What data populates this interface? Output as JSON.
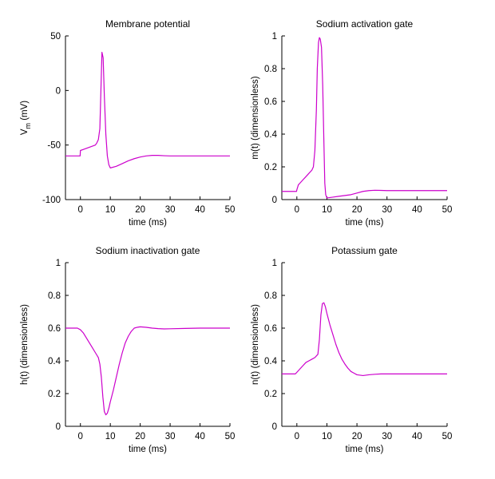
{
  "colors": {
    "line": "#cc00cc",
    "axis": "#000000",
    "background": "#ffffff"
  },
  "chart_data": [
    {
      "type": "line",
      "title": "Membrane potential",
      "xlabel": "time (ms)",
      "ylabel": "V",
      "ylabel_sub": "m",
      "ylabel_suffix": " (mV)",
      "xlim": [
        -5,
        50
      ],
      "ylim": [
        -100,
        50
      ],
      "xticks": [
        0,
        10,
        20,
        30,
        40,
        50
      ],
      "yticks": [
        -100,
        -50,
        0,
        50
      ],
      "xtick_labels": [
        "0",
        "10",
        "20",
        "30",
        "40",
        "50"
      ],
      "ytick_labels": [
        "-100",
        "-50",
        "0",
        "50"
      ],
      "grid": false,
      "series": [
        {
          "x": [
            -5,
            -0.1,
            0,
            1,
            2,
            3,
            4,
            5,
            5.5,
            6,
            6.5,
            6.8,
            7.2,
            7.6,
            8,
            8.5,
            9,
            9.5,
            10,
            12,
            14,
            16,
            18,
            20,
            22,
            24,
            26,
            28,
            30,
            35,
            40,
            45,
            50
          ],
          "y": [
            -60,
            -60,
            -55,
            -54,
            -53,
            -52,
            -51,
            -50,
            -48,
            -45,
            -35,
            -5,
            35,
            30,
            -5,
            -40,
            -60,
            -68,
            -71,
            -69.5,
            -67,
            -64.5,
            -62.5,
            -61,
            -60,
            -59.5,
            -59.5,
            -59.8,
            -60,
            -60,
            -60,
            -60,
            -60
          ]
        }
      ]
    },
    {
      "type": "line",
      "title": "Sodium activation gate",
      "xlabel": "time (ms)",
      "ylabel": "m(t) (dimensionless)",
      "xlim": [
        -5,
        50
      ],
      "ylim": [
        0,
        1
      ],
      "xticks": [
        0,
        10,
        20,
        30,
        40,
        50
      ],
      "yticks": [
        0,
        0.2,
        0.4,
        0.6,
        0.8,
        1
      ],
      "xtick_labels": [
        "0",
        "10",
        "20",
        "30",
        "40",
        "50"
      ],
      "ytick_labels": [
        "0",
        "0.2",
        "0.4",
        "0.6",
        "0.8",
        "1"
      ],
      "grid": false,
      "series": [
        {
          "x": [
            -5,
            -0.1,
            0,
            0.5,
            1,
            2,
            3,
            4,
            5,
            5.5,
            6,
            6.5,
            6.8,
            7.2,
            7.5,
            7.8,
            8.2,
            8.6,
            9,
            9.3,
            9.6,
            10,
            12,
            14,
            16,
            18,
            20,
            22,
            24,
            26,
            28,
            30,
            35,
            40,
            45,
            50
          ],
          "y": [
            0.05,
            0.05,
            0.06,
            0.09,
            0.1,
            0.12,
            0.14,
            0.16,
            0.18,
            0.2,
            0.3,
            0.55,
            0.8,
            0.96,
            0.99,
            0.98,
            0.93,
            0.7,
            0.35,
            0.1,
            0.03,
            0.01,
            0.015,
            0.02,
            0.025,
            0.03,
            0.04,
            0.05,
            0.055,
            0.057,
            0.056,
            0.055,
            0.055,
            0.055,
            0.055,
            0.055
          ]
        }
      ]
    },
    {
      "type": "line",
      "title": "Sodium inactivation gate",
      "xlabel": "time (ms)",
      "ylabel": "h(t) (dimensionless)",
      "xlim": [
        -5,
        50
      ],
      "ylim": [
        0,
        1
      ],
      "xticks": [
        0,
        10,
        20,
        30,
        40,
        50
      ],
      "yticks": [
        0,
        0.2,
        0.4,
        0.6,
        0.8,
        1
      ],
      "xtick_labels": [
        "0",
        "10",
        "20",
        "30",
        "40",
        "50"
      ],
      "ytick_labels": [
        "0",
        "0.2",
        "0.4",
        "0.6",
        "0.8",
        "1"
      ],
      "grid": false,
      "series": [
        {
          "x": [
            -5,
            -1,
            0,
            1,
            2,
            3,
            4,
            5,
            6,
            6.5,
            7,
            7.5,
            8,
            8.5,
            9,
            9.5,
            10,
            11,
            12,
            13,
            14,
            15,
            16,
            17,
            18,
            19,
            20,
            22,
            24,
            26,
            28,
            30,
            35,
            40,
            45,
            50
          ],
          "y": [
            0.6,
            0.6,
            0.59,
            0.57,
            0.54,
            0.51,
            0.48,
            0.45,
            0.42,
            0.38,
            0.3,
            0.18,
            0.09,
            0.07,
            0.08,
            0.11,
            0.15,
            0.22,
            0.3,
            0.38,
            0.45,
            0.51,
            0.55,
            0.58,
            0.6,
            0.605,
            0.608,
            0.605,
            0.6,
            0.597,
            0.595,
            0.596,
            0.598,
            0.6,
            0.6,
            0.6
          ]
        }
      ]
    },
    {
      "type": "line",
      "title": "Potassium gate",
      "xlabel": "time (ms)",
      "ylabel": "n(t) (dimensionless)",
      "xlim": [
        -5,
        50
      ],
      "ylim": [
        0,
        1
      ],
      "xticks": [
        0,
        10,
        20,
        30,
        40,
        50
      ],
      "yticks": [
        0,
        0.2,
        0.4,
        0.6,
        0.8,
        1
      ],
      "xtick_labels": [
        "0",
        "10",
        "20",
        "30",
        "40",
        "50"
      ],
      "ytick_labels": [
        "0",
        "0.2",
        "0.4",
        "0.6",
        "0.8",
        "1"
      ],
      "grid": false,
      "series": [
        {
          "x": [
            -5,
            -0.5,
            0,
            1,
            2,
            3,
            4,
            5,
            6,
            7,
            7.5,
            8,
            8.5,
            9,
            9.5,
            10,
            11,
            12,
            13,
            14,
            15,
            16,
            17,
            18,
            19,
            20,
            22,
            24,
            26,
            28,
            30,
            35,
            40,
            45,
            50
          ],
          "y": [
            0.32,
            0.32,
            0.33,
            0.35,
            0.37,
            0.39,
            0.4,
            0.41,
            0.42,
            0.44,
            0.53,
            0.68,
            0.75,
            0.755,
            0.73,
            0.69,
            0.62,
            0.56,
            0.5,
            0.45,
            0.41,
            0.38,
            0.355,
            0.335,
            0.325,
            0.315,
            0.31,
            0.315,
            0.318,
            0.32,
            0.32,
            0.32,
            0.32,
            0.32,
            0.32
          ]
        }
      ]
    }
  ]
}
